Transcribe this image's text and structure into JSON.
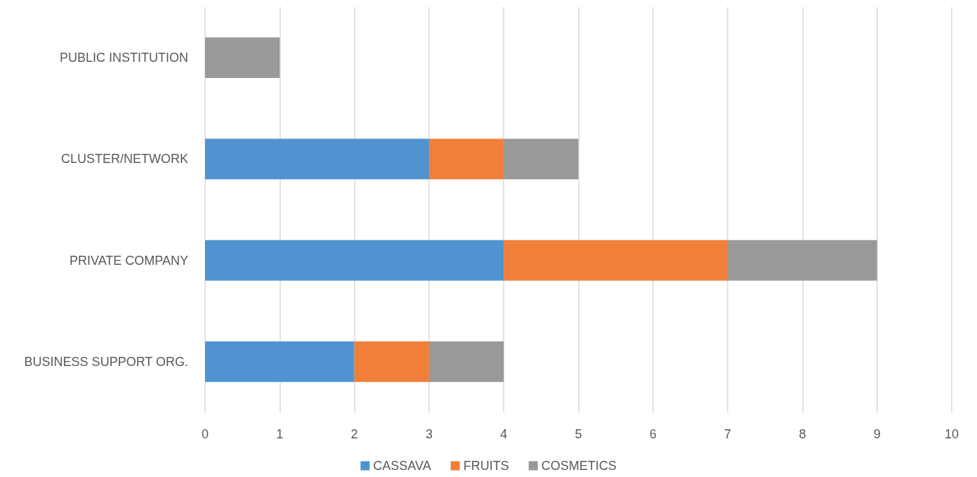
{
  "chart_data": {
    "type": "bar",
    "orientation": "horizontal",
    "stacked": true,
    "categories": [
      "PUBLIC INSTITUTION",
      "CLUSTER/NETWORK",
      "PRIVATE COMPANY",
      "BUSINESS SUPPORT ORG."
    ],
    "series": [
      {
        "name": "CASSAVA",
        "color": "#4f94d0",
        "values": [
          0,
          3,
          4,
          2
        ]
      },
      {
        "name": "FRUITS",
        "color": "#f07f3a",
        "values": [
          0,
          1,
          3,
          1
        ]
      },
      {
        "name": "COSMETICS",
        "color": "#999999",
        "values": [
          1,
          1,
          2,
          1
        ]
      }
    ],
    "xlim": [
      0,
      10
    ],
    "xticks": [
      0,
      1,
      2,
      3,
      4,
      5,
      6,
      7,
      8,
      9,
      10
    ],
    "grid": "x",
    "legend": "bottom"
  }
}
